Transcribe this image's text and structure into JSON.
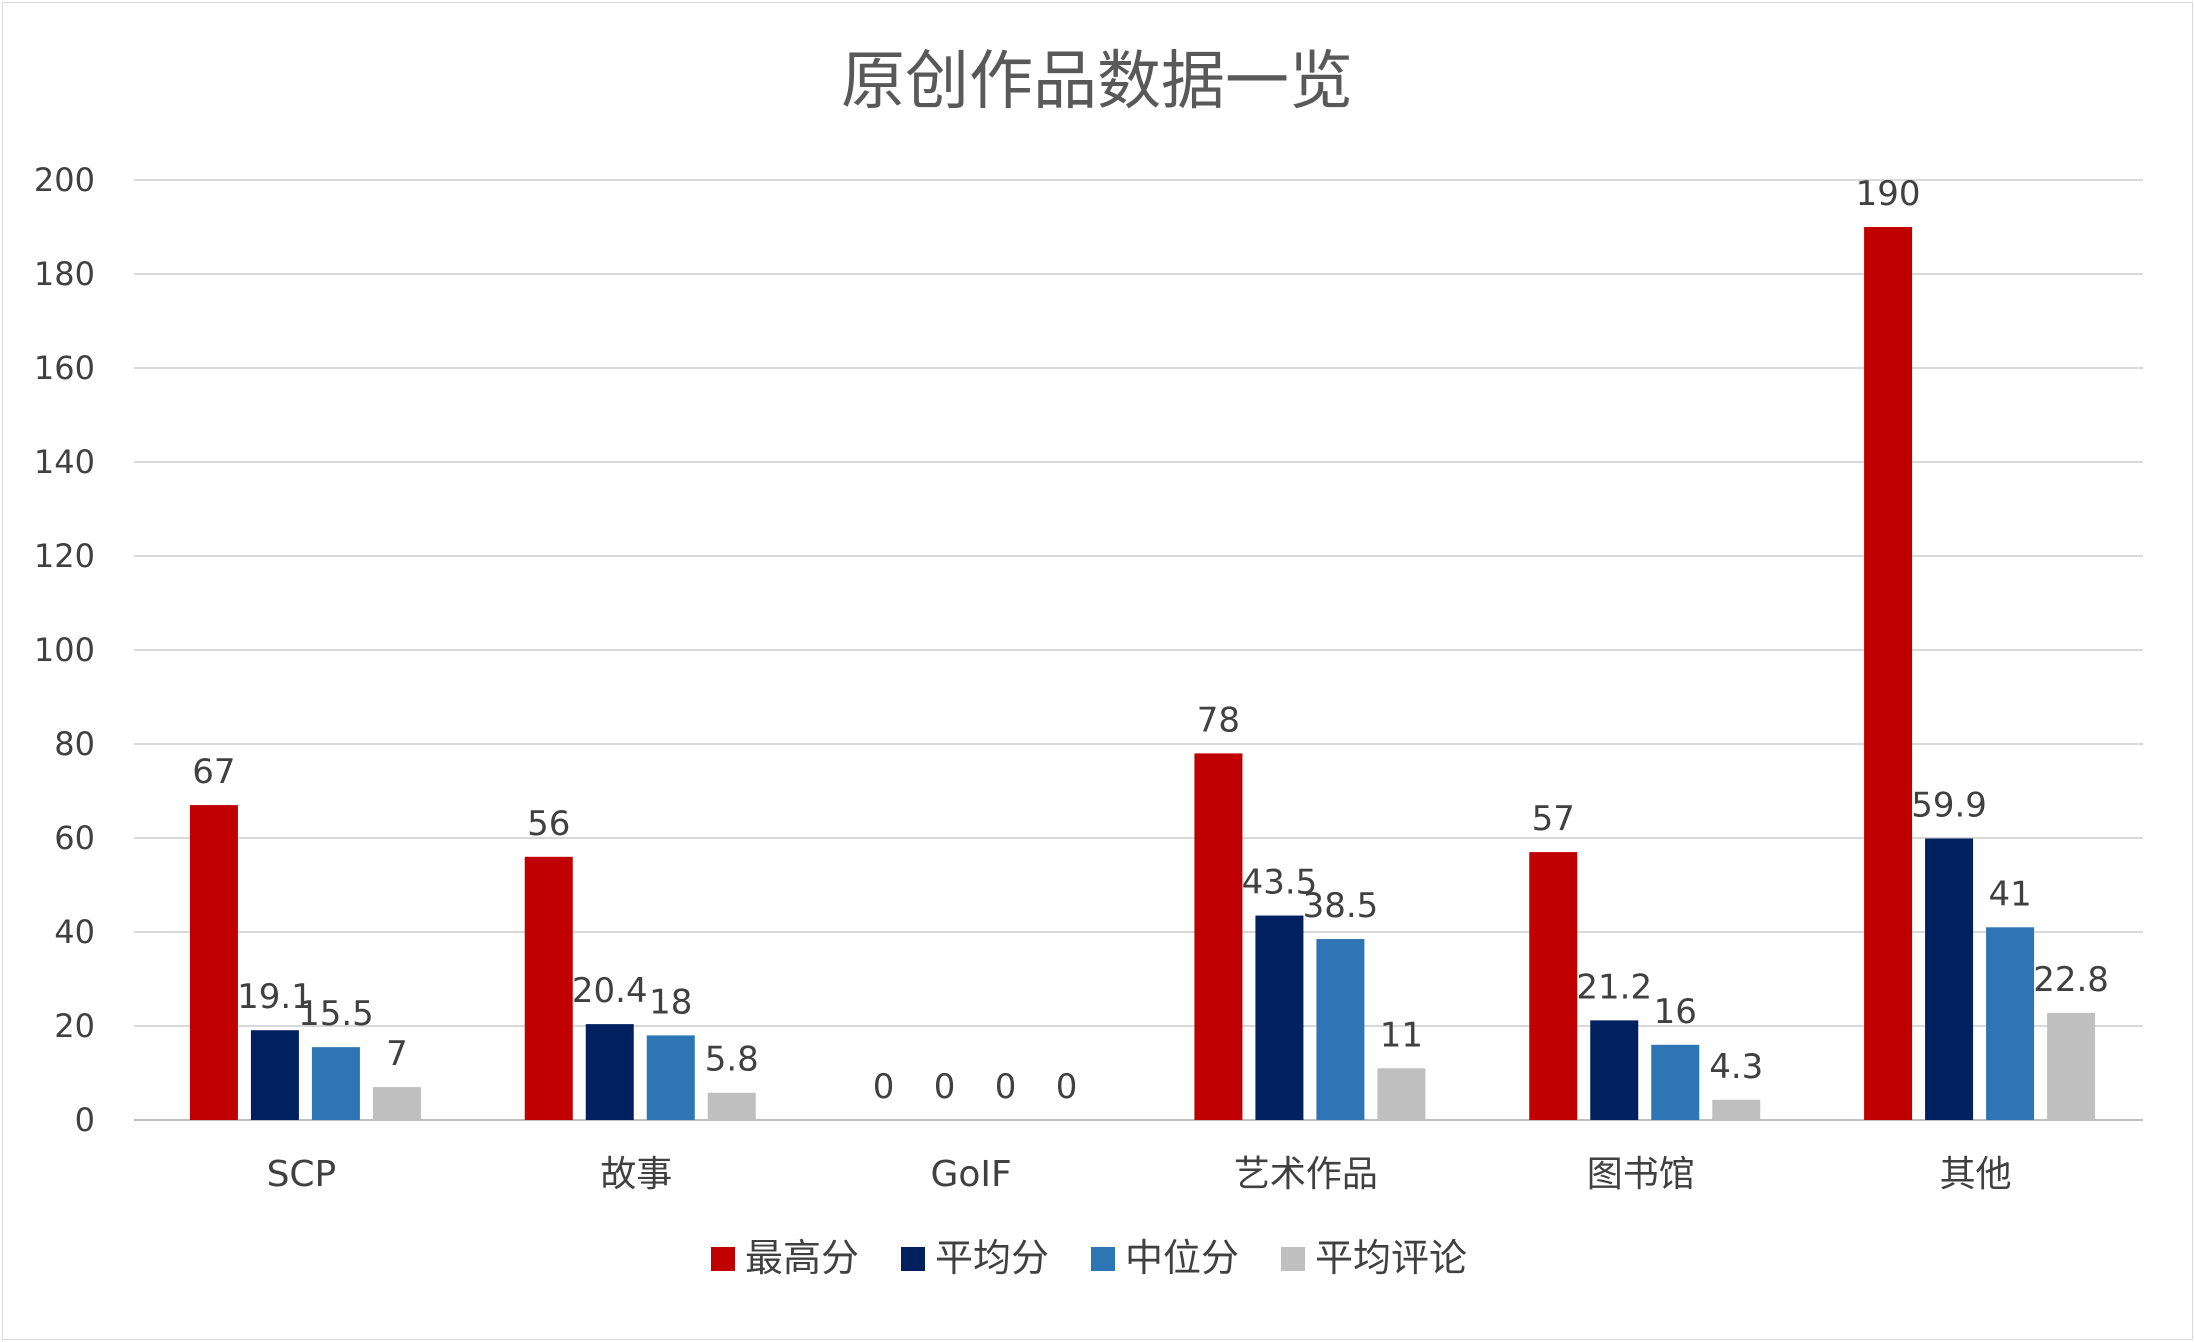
{
  "chart_data": {
    "type": "bar",
    "title": "原创作品数据一览",
    "categories": [
      "SCP",
      "故事",
      "GoIF",
      "艺术作品",
      "图书馆",
      "其他"
    ],
    "series": [
      {
        "name": "最高分",
        "color": "#c00000",
        "values": [
          67,
          56,
          0,
          78,
          57,
          190
        ]
      },
      {
        "name": "平均分",
        "color": "#002060",
        "values": [
          19.1,
          20.4,
          0,
          43.5,
          21.2,
          59.9
        ]
      },
      {
        "name": "中位分",
        "color": "#2e75b6",
        "values": [
          15.5,
          18,
          0,
          38.5,
          16,
          41
        ]
      },
      {
        "name": "平均评论",
        "color": "#bfbfbf",
        "values": [
          7,
          5.8,
          0,
          11,
          4.3,
          22.8
        ]
      }
    ],
    "ylim": [
      0,
      200
    ],
    "yticks": [
      0,
      20,
      40,
      60,
      80,
      100,
      120,
      140,
      160,
      180,
      200
    ],
    "grid": true,
    "legend": "bottom",
    "data_labels": true
  }
}
